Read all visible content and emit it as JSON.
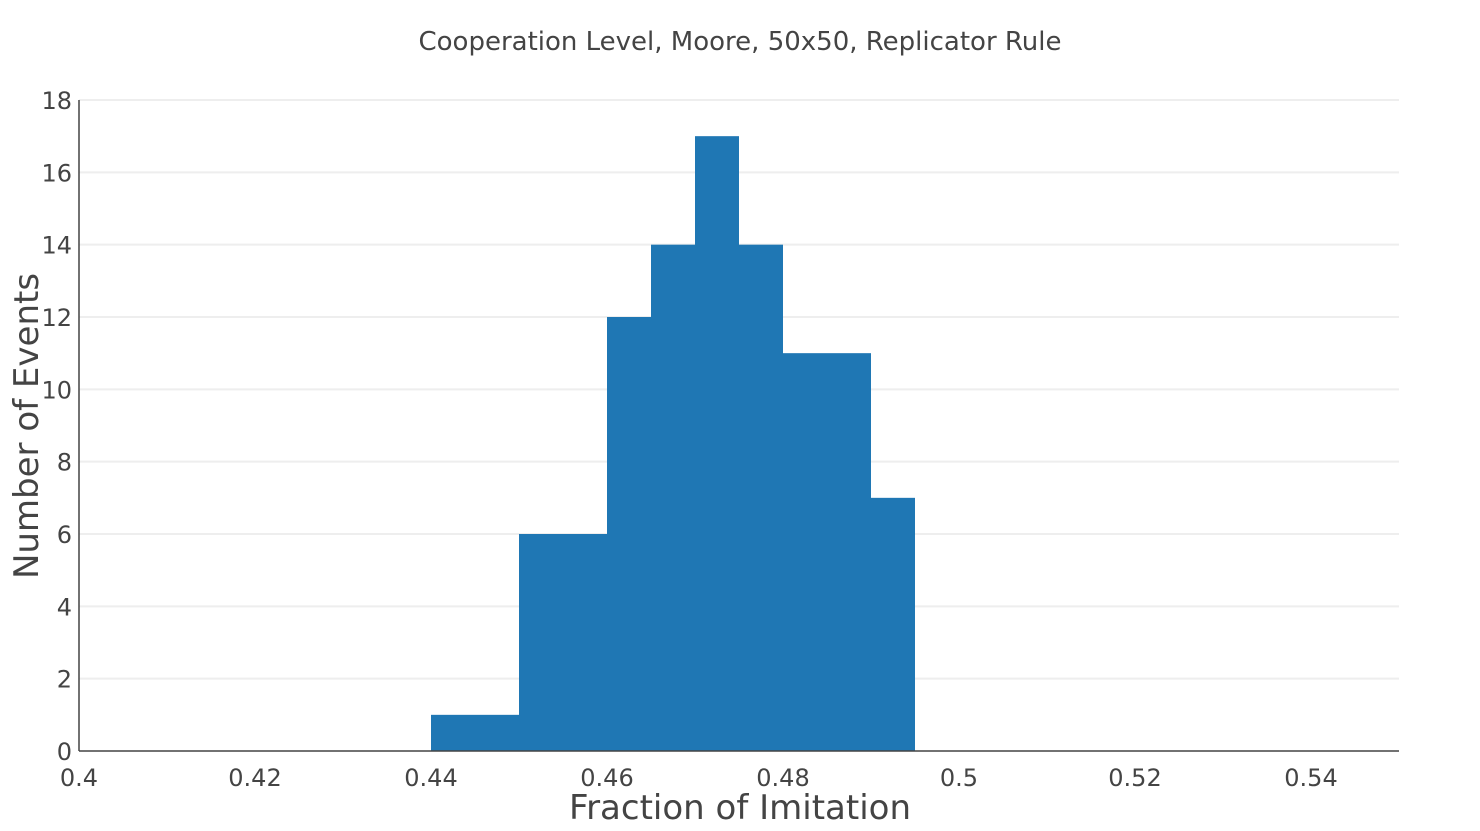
{
  "chart_data": {
    "type": "bar",
    "subtype": "histogram",
    "title": "Cooperation Level, Moore, 50x50, Replicator Rule",
    "xlabel": "Fraction of Imitation",
    "ylabel": "Number of Events",
    "xlim": [
      0.4,
      0.55
    ],
    "ylim": [
      0,
      18
    ],
    "xticks": [
      "0.4",
      "0.42",
      "0.44",
      "0.46",
      "0.48",
      "0.5",
      "0.52",
      "0.54"
    ],
    "xtick_values": [
      0.4,
      0.42,
      0.44,
      0.46,
      0.48,
      0.5,
      0.52,
      0.54
    ],
    "yticks": [
      "0",
      "2",
      "4",
      "6",
      "8",
      "10",
      "12",
      "14",
      "16",
      "18"
    ],
    "ytick_values": [
      0,
      2,
      4,
      6,
      8,
      10,
      12,
      14,
      16,
      18
    ],
    "bins": [
      {
        "x0": 0.44,
        "x1": 0.445,
        "count": 1
      },
      {
        "x0": 0.445,
        "x1": 0.45,
        "count": 1
      },
      {
        "x0": 0.45,
        "x1": 0.455,
        "count": 6
      },
      {
        "x0": 0.455,
        "x1": 0.46,
        "count": 6
      },
      {
        "x0": 0.46,
        "x1": 0.465,
        "count": 12
      },
      {
        "x0": 0.465,
        "x1": 0.47,
        "count": 14
      },
      {
        "x0": 0.47,
        "x1": 0.475,
        "count": 17
      },
      {
        "x0": 0.475,
        "x1": 0.48,
        "count": 14
      },
      {
        "x0": 0.48,
        "x1": 0.485,
        "count": 11
      },
      {
        "x0": 0.485,
        "x1": 0.49,
        "count": 11
      },
      {
        "x0": 0.49,
        "x1": 0.495,
        "count": 7
      }
    ],
    "grid": true,
    "bar_color": "#1f77b4",
    "grid_color": "#eeeeee",
    "axis_color": "#444444"
  }
}
